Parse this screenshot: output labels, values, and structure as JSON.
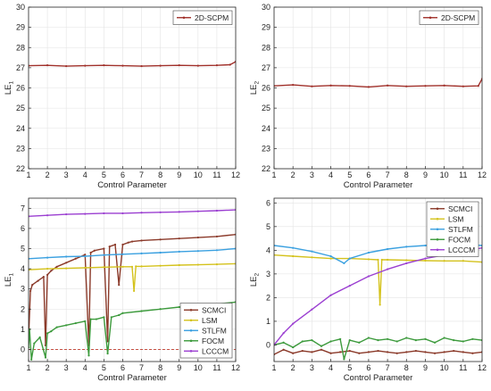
{
  "chart_data": [
    {
      "type": "line",
      "panel": "top-left",
      "xlabel": "Control Parameter",
      "ylabel": "LE",
      "ylabel_sub": "1",
      "xlim": [
        1,
        12
      ],
      "ylim": [
        22,
        30
      ],
      "xticks": [
        1,
        2,
        3,
        4,
        5,
        6,
        7,
        8,
        9,
        10,
        11,
        12
      ],
      "yticks": [
        22,
        23,
        24,
        25,
        26,
        27,
        28,
        29,
        30
      ],
      "grid": true,
      "legend_position": "top-right",
      "series": [
        {
          "name": "2D-SCPM",
          "color": "#a0302a",
          "x": [
            1,
            2,
            3,
            4,
            5,
            6,
            7,
            8,
            9,
            10,
            11,
            11.7,
            12
          ],
          "y": [
            27.1,
            27.12,
            27.08,
            27.1,
            27.12,
            27.1,
            27.08,
            27.1,
            27.12,
            27.1,
            27.12,
            27.15,
            27.3
          ]
        }
      ]
    },
    {
      "type": "line",
      "panel": "top-right",
      "xlabel": "Control Parameter",
      "ylabel": "LE",
      "ylabel_sub": "2",
      "xlim": [
        1,
        12
      ],
      "ylim": [
        22,
        30
      ],
      "xticks": [
        1,
        2,
        3,
        4,
        5,
        6,
        7,
        8,
        9,
        10,
        11,
        12
      ],
      "yticks": [
        22,
        23,
        24,
        25,
        26,
        27,
        28,
        29,
        30
      ],
      "grid": true,
      "legend_position": "top-right",
      "series": [
        {
          "name": "2D-SCPM",
          "color": "#a0302a",
          "x": [
            1,
            2,
            3,
            4,
            5,
            6,
            7,
            8,
            9,
            10,
            11,
            11.8,
            12
          ],
          "y": [
            26.1,
            26.15,
            26.08,
            26.12,
            26.1,
            26.05,
            26.12,
            26.08,
            26.1,
            26.12,
            26.08,
            26.1,
            26.45
          ]
        }
      ]
    },
    {
      "type": "line",
      "panel": "bottom-left",
      "xlabel": "Control Parameter",
      "ylabel": "LE",
      "ylabel_sub": "1",
      "xlim": [
        1,
        12
      ],
      "ylim": [
        -0.6,
        7.5
      ],
      "xticks": [
        1,
        2,
        3,
        4,
        5,
        6,
        7,
        8,
        9,
        10,
        11,
        12
      ],
      "yticks": [
        0,
        1,
        2,
        3,
        4,
        5,
        6,
        7
      ],
      "grid": true,
      "legend_position": "bottom-right",
      "reference_line": {
        "y": 0,
        "color": "#c0392b"
      },
      "series": [
        {
          "name": "SCMCI",
          "color": "#8b3a2a",
          "x": [
            1,
            1.1,
            1.2,
            1.5,
            1.8,
            1.9,
            2.0,
            2.2,
            2.5,
            3,
            3.5,
            4,
            4.2,
            4.3,
            4.5,
            5,
            5.2,
            5.3,
            5.6,
            5.8,
            6,
            6.3,
            6.5,
            7,
            8,
            9,
            10,
            11,
            12
          ],
          "y": [
            0.5,
            2.9,
            3.2,
            3.4,
            3.6,
            0.2,
            3.7,
            3.9,
            4.1,
            4.3,
            4.5,
            4.7,
            0.2,
            4.8,
            4.9,
            5.0,
            0.4,
            5.1,
            5.2,
            3.2,
            5.2,
            5.3,
            5.35,
            5.4,
            5.45,
            5.5,
            5.55,
            5.6,
            5.7
          ]
        },
        {
          "name": "LSM",
          "color": "#d4c21c",
          "x": [
            1,
            2,
            3,
            4,
            5,
            6,
            6.5,
            6.6,
            6.7,
            7,
            8,
            9,
            10,
            11,
            12
          ],
          "y": [
            3.95,
            4.0,
            4.02,
            4.05,
            4.08,
            4.1,
            4.1,
            2.9,
            4.12,
            4.12,
            4.15,
            4.18,
            4.2,
            4.22,
            4.25
          ]
        },
        {
          "name": "STLFM",
          "color": "#3aa0e0",
          "x": [
            1,
            2,
            3,
            4,
            5,
            6,
            7,
            8,
            9,
            10,
            11,
            12
          ],
          "y": [
            4.5,
            4.55,
            4.6,
            4.62,
            4.68,
            4.72,
            4.76,
            4.8,
            4.85,
            4.88,
            4.92,
            5.0
          ]
        },
        {
          "name": "FOCM",
          "color": "#3c9a3c",
          "x": [
            1,
            1.05,
            1.15,
            1.3,
            1.6,
            1.9,
            2.0,
            2.2,
            2.5,
            3,
            3.5,
            4,
            4.2,
            4.3,
            4.6,
            5,
            5.2,
            5.4,
            5.8,
            6,
            7,
            8,
            9,
            10,
            11,
            12
          ],
          "y": [
            0.1,
            1.0,
            -0.5,
            0.3,
            0.6,
            -0.4,
            0.8,
            0.9,
            1.1,
            1.2,
            1.3,
            1.4,
            -0.3,
            1.5,
            1.5,
            1.6,
            -0.2,
            1.6,
            1.7,
            1.8,
            1.9,
            2.0,
            2.1,
            2.2,
            2.25,
            2.35
          ]
        },
        {
          "name": "LCCCM",
          "color": "#9b3fd1",
          "x": [
            1,
            2,
            3,
            4,
            5,
            6,
            7,
            8,
            9,
            10,
            11,
            12
          ],
          "y": [
            6.6,
            6.65,
            6.7,
            6.72,
            6.75,
            6.75,
            6.78,
            6.8,
            6.82,
            6.85,
            6.88,
            6.92
          ]
        }
      ]
    },
    {
      "type": "line",
      "panel": "bottom-right",
      "xlabel": "Control Parameter",
      "ylabel": "LE",
      "ylabel_sub": "2",
      "xlim": [
        1,
        12
      ],
      "ylim": [
        -0.7,
        6.2
      ],
      "xticks": [
        1,
        2,
        3,
        4,
        5,
        6,
        7,
        8,
        9,
        10,
        11,
        12
      ],
      "yticks": [
        0,
        1,
        2,
        3,
        4,
        5,
        6
      ],
      "grid": true,
      "legend_position": "top-right",
      "series": [
        {
          "name": "SCMCI",
          "color": "#8b3a2a",
          "x": [
            1,
            1.5,
            2,
            2.5,
            3,
            3.5,
            4,
            4.5,
            5,
            5.5,
            6,
            6.5,
            7,
            7.5,
            8,
            8.5,
            9,
            9.5,
            10,
            10.5,
            11,
            11.5,
            12
          ],
          "y": [
            -0.4,
            -0.2,
            -0.35,
            -0.25,
            -0.3,
            -0.2,
            -0.35,
            -0.3,
            -0.25,
            -0.35,
            -0.3,
            -0.25,
            -0.3,
            -0.35,
            -0.3,
            -0.25,
            -0.3,
            -0.35,
            -0.3,
            -0.25,
            -0.3,
            -0.35,
            -0.3
          ]
        },
        {
          "name": "LSM",
          "color": "#d4c21c",
          "x": [
            1,
            2,
            3,
            4,
            5,
            6,
            6.5,
            6.6,
            6.7,
            7,
            8,
            9,
            10,
            11,
            12
          ],
          "y": [
            3.8,
            3.75,
            3.7,
            3.65,
            3.65,
            3.62,
            3.6,
            1.7,
            3.6,
            3.6,
            3.58,
            3.56,
            3.55,
            3.55,
            3.5
          ]
        },
        {
          "name": "STLFM",
          "color": "#3aa0e0",
          "x": [
            1,
            2,
            3,
            4,
            4.7,
            5,
            6,
            7,
            8,
            9,
            10,
            11,
            12
          ],
          "y": [
            4.2,
            4.1,
            3.95,
            3.75,
            3.45,
            3.65,
            3.9,
            4.05,
            4.15,
            4.2,
            4.22,
            4.25,
            4.2
          ]
        },
        {
          "name": "FOCM",
          "color": "#3c9a3c",
          "x": [
            1,
            1.5,
            2,
            2.5,
            3,
            3.5,
            4,
            4.5,
            4.7,
            5,
            5.5,
            6,
            6.5,
            7,
            7.5,
            8,
            8.5,
            9,
            9.5,
            10,
            10.5,
            11,
            11.5,
            12
          ],
          "y": [
            0.0,
            0.1,
            -0.1,
            0.15,
            0.2,
            -0.05,
            0.15,
            0.25,
            -0.6,
            0.2,
            0.1,
            0.3,
            0.2,
            0.25,
            0.15,
            0.3,
            0.2,
            0.25,
            0.1,
            0.3,
            0.2,
            0.15,
            0.25,
            0.2
          ]
        },
        {
          "name": "LCCCM",
          "color": "#9b3fd1",
          "x": [
            1,
            1.5,
            2,
            3,
            4,
            5,
            6,
            7,
            8,
            9,
            10,
            11,
            12
          ],
          "y": [
            0.0,
            0.5,
            0.9,
            1.5,
            2.1,
            2.5,
            2.9,
            3.2,
            3.45,
            3.65,
            3.8,
            3.95,
            4.1
          ]
        }
      ]
    }
  ]
}
